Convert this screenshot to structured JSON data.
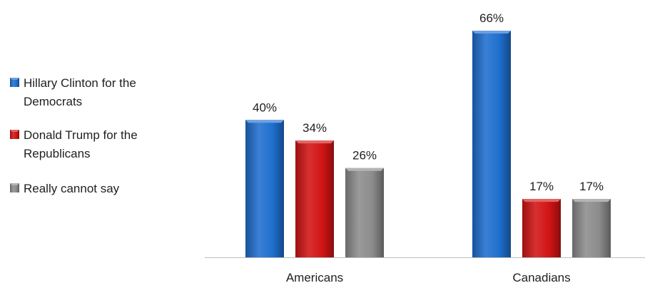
{
  "chart_data": {
    "type": "bar",
    "categories": [
      "Americans",
      "Canadians"
    ],
    "series": [
      {
        "name": "Hillary Clinton for the Democrats",
        "values": [
          40,
          66
        ],
        "color": "#1f6fcf"
      },
      {
        "name": "Donald Trump for the Republicans",
        "values": [
          34,
          17
        ],
        "color": "#d21414"
      },
      {
        "name": "Really cannot say",
        "values": [
          26,
          17
        ],
        "color": "#8c8c8c"
      }
    ],
    "legend": {
      "position": "left",
      "entries": [
        {
          "lines": [
            "Hillary Clinton for the",
            "Democrats"
          ]
        },
        {
          "lines": [
            "Donald Trump for the",
            "Republicans"
          ]
        },
        {
          "lines": [
            "Really cannot say"
          ]
        }
      ]
    },
    "value_suffix": "%",
    "title": "",
    "xlabel": "",
    "ylabel": "",
    "ylim": [
      0,
      70
    ],
    "grid": false
  }
}
